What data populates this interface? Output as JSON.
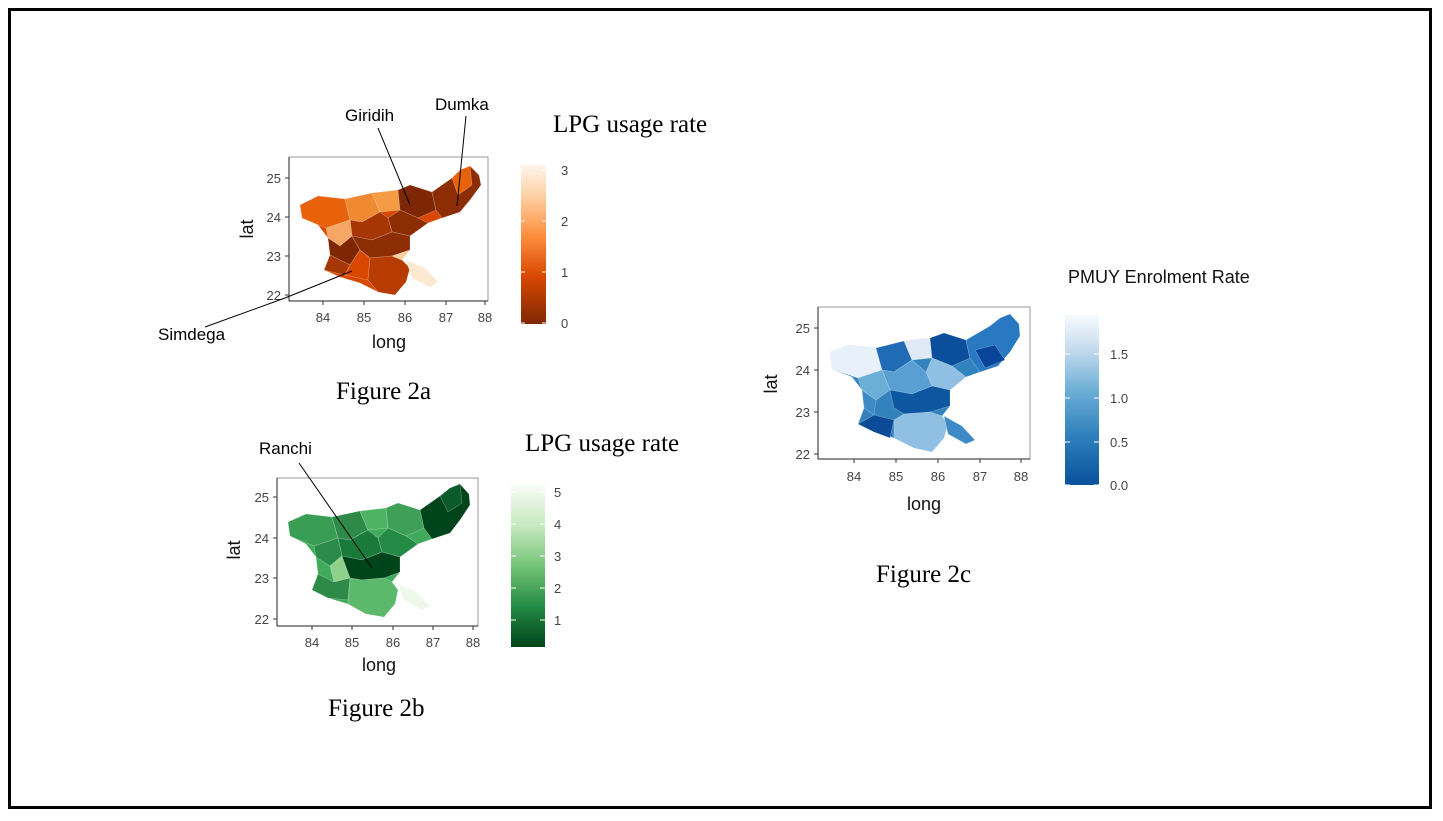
{
  "figures": [
    {
      "id": "2a",
      "caption": "Figure 2a",
      "legend_title": "LPG usage rate",
      "axes": {
        "xlabel": "long",
        "ylabel": "lat",
        "xticks": [
          84,
          85,
          86,
          87,
          88
        ],
        "yticks": [
          22,
          23,
          24,
          25
        ],
        "xlim": [
          83.3,
          88.2
        ],
        "ylim": [
          21.9,
          25.5
        ]
      },
      "colorbar": {
        "ticks": [
          0,
          1,
          2,
          3
        ],
        "range": [
          0,
          3.1
        ],
        "colors": [
          "#7f2704",
          "#d94801",
          "#fd8d3c",
          "#fdd0a2",
          "#fff5eb"
        ]
      },
      "annotations": [
        "Giridih",
        "Dumka",
        "Simdega"
      ]
    },
    {
      "id": "2b",
      "caption": "Figure 2b",
      "legend_title": "LPG usage rate",
      "axes": {
        "xlabel": "long",
        "ylabel": "lat",
        "xticks": [
          84,
          85,
          86,
          87,
          88
        ],
        "yticks": [
          22,
          23,
          24,
          25
        ],
        "xlim": [
          83.3,
          88.2
        ],
        "ylim": [
          21.8,
          25.5
        ]
      },
      "colorbar": {
        "ticks": [
          1,
          2,
          3,
          4,
          5
        ],
        "range": [
          0.2,
          5.2
        ],
        "colors": [
          "#00441b",
          "#238b45",
          "#74c476",
          "#c7e9c0",
          "#f7fcf5"
        ]
      },
      "annotations": [
        "Ranchi"
      ]
    },
    {
      "id": "2c",
      "caption": "Figure 2c",
      "legend_title": "PMUY Enrolment Rate",
      "axes": {
        "xlabel": "long",
        "ylabel": "lat",
        "xticks": [
          84,
          85,
          86,
          87,
          88
        ],
        "yticks": [
          22,
          23,
          24,
          25
        ],
        "xlim": [
          83.3,
          88.2
        ],
        "ylim": [
          21.8,
          25.5
        ]
      },
      "colorbar": {
        "ticks": [
          0.0,
          0.5,
          1.0,
          1.5
        ],
        "tick_labels": [
          "0.0",
          "0.5",
          "1.0",
          "1.5"
        ],
        "range": [
          0,
          1.95
        ],
        "colors": [
          "#08519c",
          "#3182bd",
          "#6baed6",
          "#c6dbef",
          "#f7fbff"
        ]
      }
    }
  ]
}
